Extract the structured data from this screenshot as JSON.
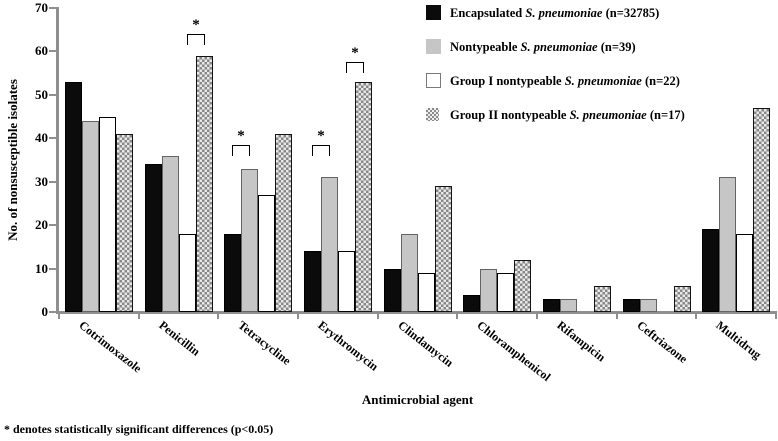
{
  "chart_data": {
    "type": "bar",
    "title": "",
    "xlabel": "Antimicrobial agent",
    "ylabel": "No. of nonsusceptible isolates",
    "ylim": [
      0,
      70
    ],
    "yticks": [
      0,
      10,
      20,
      30,
      40,
      50,
      60,
      70
    ],
    "grid": false,
    "legend_position": "top-right",
    "categories": [
      "Cotrimoxazole",
      "Penicillin",
      "Tetracycline",
      "Erythromycin",
      "Clindamycin",
      "Chloramphenicol",
      "Rifampicin",
      "Ceftriazone",
      "Multidrug"
    ],
    "series": [
      {
        "name": "Encapsulated S. pneumoniae (n=32785)",
        "style": "black",
        "values": [
          53,
          34,
          18,
          14,
          10,
          4,
          3,
          3,
          19
        ]
      },
      {
        "name": "Nontypeable S. pneumoniae (n=39)",
        "style": "gray",
        "values": [
          44,
          36,
          33,
          31,
          18,
          10,
          3,
          3,
          31
        ]
      },
      {
        "name": "Group I nontypeable S. pneumoniae (n=22)",
        "style": "white",
        "values": [
          45,
          18,
          27,
          14,
          9,
          9,
          0,
          0,
          18
        ]
      },
      {
        "name": "Group II nontypeable S. pneumoniae (n=17)",
        "style": "dotted",
        "values": [
          41,
          59,
          41,
          53,
          29,
          12,
          6,
          6,
          47
        ]
      }
    ],
    "significance_brackets": [
      {
        "category": "Penicillin",
        "group_index": 1,
        "between_bars": [
          2,
          3
        ],
        "top_value": 64,
        "label": "*"
      },
      {
        "category": "Tetracycline",
        "group_index": 2,
        "between_bars": [
          0,
          1
        ],
        "top_value": 38.5,
        "label": "*"
      },
      {
        "category": "Erythromycin",
        "group_index": 3,
        "between_bars": [
          0,
          1
        ],
        "top_value": 38.5,
        "label": "*"
      },
      {
        "category": "Erythromycin",
        "group_index": 3,
        "between_bars": [
          2,
          3
        ],
        "top_value": 57.5,
        "label": "*"
      }
    ]
  },
  "legend": {
    "items": [
      {
        "prefix": "Encapsulated ",
        "italic": "S. pneumoniae",
        "suffix": " (n=32785)",
        "swatch": "black"
      },
      {
        "prefix": "Nontypeable ",
        "italic": "S. pneumoniae",
        "suffix": " (n=39)",
        "swatch": "gray"
      },
      {
        "prefix": "Group I nontypeable ",
        "italic": "S. pneumoniae",
        "suffix": " (n=22)",
        "swatch": "white"
      },
      {
        "prefix": "Group II nontypeable ",
        "italic": "S. pneumoniae",
        "suffix": " (n=17)",
        "swatch": "dotted"
      }
    ]
  },
  "footnote": "* denotes statistically significant differences (p<0.05)",
  "colors": {
    "bar_black": "#0b0b0b",
    "bar_gray": "#c6c6c6",
    "bar_white": "#ffffff",
    "dotted_dark": "#878787",
    "dotted_light": "#e9e9e9",
    "axis": "#8f8f8f",
    "text": "#000000"
  }
}
